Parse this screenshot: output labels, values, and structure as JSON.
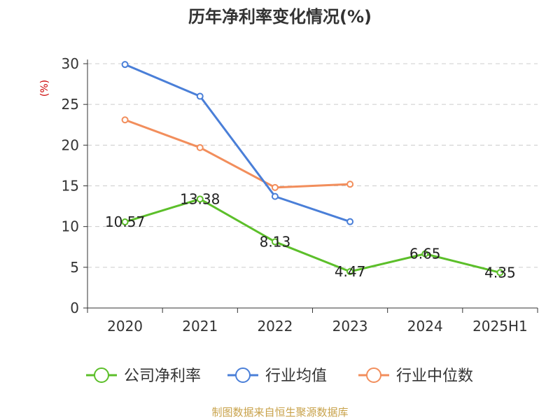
{
  "chart_data": {
    "type": "line",
    "title": "历年净利率变化情况(%)",
    "ylabel": "(%)",
    "categories": [
      "2020",
      "2021",
      "2022",
      "2023",
      "2024",
      "2025H1"
    ],
    "ylim": [
      0,
      30
    ],
    "yticks": [
      0,
      5,
      10,
      15,
      20,
      25,
      30
    ],
    "grid": true,
    "legend_position": "bottom",
    "series": [
      {
        "name": "公司净利率",
        "color": "#5cbf2a",
        "values": [
          10.57,
          13.38,
          8.13,
          4.47,
          6.65,
          4.35
        ],
        "labels": [
          "10.57",
          "13.38",
          "8.13",
          "4.47",
          "6.65",
          "4.35"
        ]
      },
      {
        "name": "行业均值",
        "color": "#4a7fd8",
        "values": [
          29.9,
          26.0,
          13.7,
          10.6,
          null,
          null
        ]
      },
      {
        "name": "行业中位数",
        "color": "#f28e5c",
        "values": [
          23.1,
          19.7,
          14.8,
          15.2,
          null,
          null
        ]
      }
    ]
  },
  "colors": {
    "axis": "#333333",
    "grid": "#cccccc",
    "unit_label": "#cc0000",
    "source": "#c8a24a"
  },
  "source": "制图数据来自恒生聚源数据库"
}
